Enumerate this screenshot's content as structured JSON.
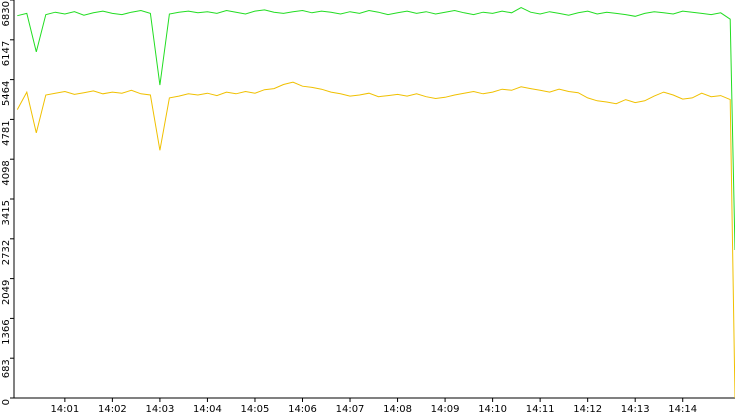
{
  "chart_data": {
    "type": "line",
    "x": [
      0,
      0.2,
      0.4,
      0.6,
      0.8,
      1.0,
      1.2,
      1.4,
      1.6,
      1.8,
      2.0,
      2.2,
      2.4,
      2.6,
      2.8,
      3.0,
      3.2,
      3.4,
      3.6,
      3.8,
      4.0,
      4.2,
      4.4,
      4.6,
      4.8,
      5.0,
      5.2,
      5.4,
      5.6,
      5.8,
      6.0,
      6.2,
      6.4,
      6.6,
      6.8,
      7.0,
      7.2,
      7.4,
      7.6,
      7.8,
      8.0,
      8.2,
      8.4,
      8.6,
      8.8,
      9.0,
      9.2,
      9.4,
      9.6,
      9.8,
      10.0,
      10.2,
      10.4,
      10.6,
      10.8,
      11.0,
      11.2,
      11.4,
      11.6,
      11.8,
      12.0,
      12.2,
      12.4,
      12.6,
      12.8,
      13.0,
      13.2,
      13.4,
      13.6,
      13.8,
      14.0,
      14.2,
      14.4,
      14.6,
      14.8,
      15.0,
      15.1
    ],
    "series": [
      {
        "color": "#22dd22",
        "values": [
          6560,
          6600,
          5940,
          6580,
          6620,
          6590,
          6630,
          6570,
          6610,
          6640,
          6600,
          6580,
          6620,
          6650,
          6600,
          5370,
          6590,
          6620,
          6640,
          6610,
          6630,
          6600,
          6650,
          6620,
          6590,
          6640,
          6660,
          6620,
          6600,
          6630,
          6650,
          6610,
          6640,
          6620,
          6590,
          6630,
          6600,
          6650,
          6620,
          6580,
          6610,
          6640,
          6600,
          6630,
          6590,
          6620,
          6650,
          6610,
          6580,
          6620,
          6600,
          6640,
          6610,
          6700,
          6620,
          6590,
          6630,
          6600,
          6570,
          6610,
          6640,
          6590,
          6620,
          6600,
          6580,
          6550,
          6600,
          6630,
          6610,
          6590,
          6640,
          6620,
          6600,
          6580,
          6610,
          6500,
          2540
        ]
      },
      {
        "color": "#f0c000",
        "values": [
          4950,
          5250,
          4550,
          5200,
          5230,
          5260,
          5210,
          5240,
          5270,
          5220,
          5250,
          5230,
          5280,
          5220,
          5200,
          4250,
          5150,
          5180,
          5220,
          5200,
          5230,
          5190,
          5250,
          5220,
          5260,
          5230,
          5290,
          5310,
          5380,
          5420,
          5350,
          5330,
          5300,
          5250,
          5220,
          5180,
          5200,
          5230,
          5170,
          5190,
          5210,
          5180,
          5220,
          5170,
          5140,
          5160,
          5200,
          5230,
          5260,
          5220,
          5250,
          5300,
          5280,
          5340,
          5310,
          5280,
          5250,
          5300,
          5260,
          5240,
          5150,
          5100,
          5080,
          5050,
          5120,
          5070,
          5100,
          5180,
          5250,
          5200,
          5130,
          5150,
          5230,
          5170,
          5190,
          5120,
          0
        ]
      }
    ],
    "xlim": [
      -0.07,
      15.1
    ],
    "xticks": [
      {
        "value": 1,
        "label": "14:01"
      },
      {
        "value": 2,
        "label": "14:02"
      },
      {
        "value": 3,
        "label": "14:03"
      },
      {
        "value": 4,
        "label": "14:04"
      },
      {
        "value": 5,
        "label": "14:05"
      },
      {
        "value": 6,
        "label": "14:06"
      },
      {
        "value": 7,
        "label": "14:07"
      },
      {
        "value": 8,
        "label": "14:08"
      },
      {
        "value": 9,
        "label": "14:09"
      },
      {
        "value": 10,
        "label": "14:10"
      },
      {
        "value": 11,
        "label": "14:11"
      },
      {
        "value": 12,
        "label": "14:12"
      },
      {
        "value": 13,
        "label": "14:13"
      },
      {
        "value": 14,
        "label": "14:14"
      }
    ],
    "ylim": [
      0,
      6830
    ],
    "yticks": [
      0,
      683,
      1366,
      2049,
      2732,
      3415,
      4098,
      4781,
      5464,
      6147,
      6830
    ]
  }
}
